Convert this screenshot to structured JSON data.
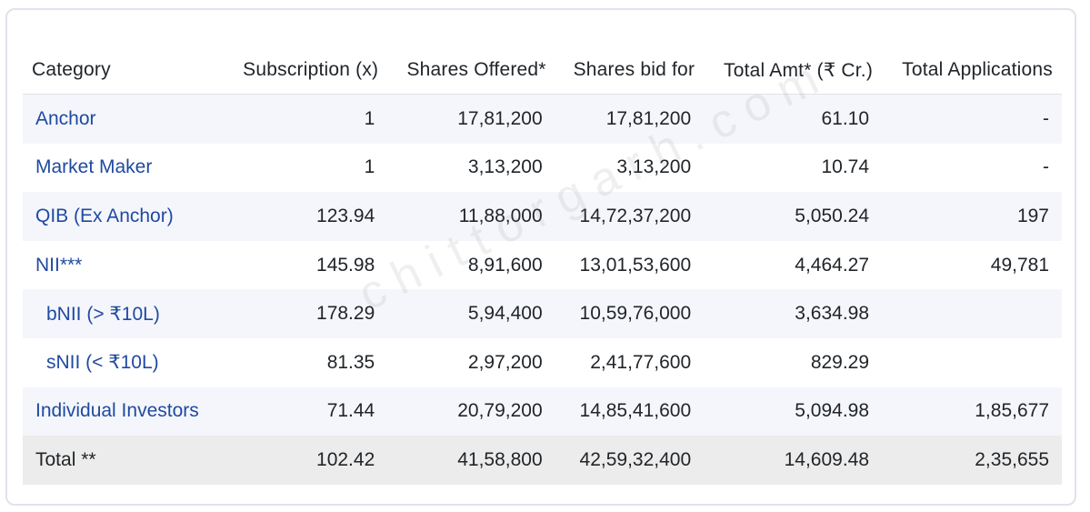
{
  "table": {
    "headers": [
      "Category",
      "Subscription (x)",
      "Shares Offered*",
      "Shares bid for",
      "Total Amt* (₹ Cr.)",
      "Total Applications"
    ],
    "rows": [
      [
        "Anchor",
        "1",
        "17,81,200",
        "17,81,200",
        "61.10",
        "-"
      ],
      [
        "Market Maker",
        "1",
        "3,13,200",
        "3,13,200",
        "10.74",
        "-"
      ],
      [
        "QIB (Ex Anchor)",
        "123.94",
        "11,88,000",
        "14,72,37,200",
        "5,050.24",
        "197"
      ],
      [
        "NII***",
        "145.98",
        "8,91,600",
        "13,01,53,600",
        "4,464.27",
        "49,781"
      ],
      [
        "bNII (> ₹10L)",
        "178.29",
        "5,94,400",
        "10,59,76,000",
        "3,634.98",
        ""
      ],
      [
        "sNII (< ₹10L)",
        "81.35",
        "2,97,200",
        "2,41,77,600",
        "829.29",
        ""
      ],
      [
        "Individual Investors",
        "71.44",
        "20,79,200",
        "14,85,41,600",
        "5,094.98",
        "1,85,677"
      ],
      [
        "Total **",
        "102.42",
        "41,58,800",
        "42,59,32,400",
        "14,609.48",
        "2,35,655"
      ]
    ]
  },
  "watermark": "chittorgarh.com",
  "colors": {
    "link": "#1f4aa0",
    "stripe": "#f5f6fb",
    "total_row": "#ececec",
    "border": "#dee2e6"
  }
}
